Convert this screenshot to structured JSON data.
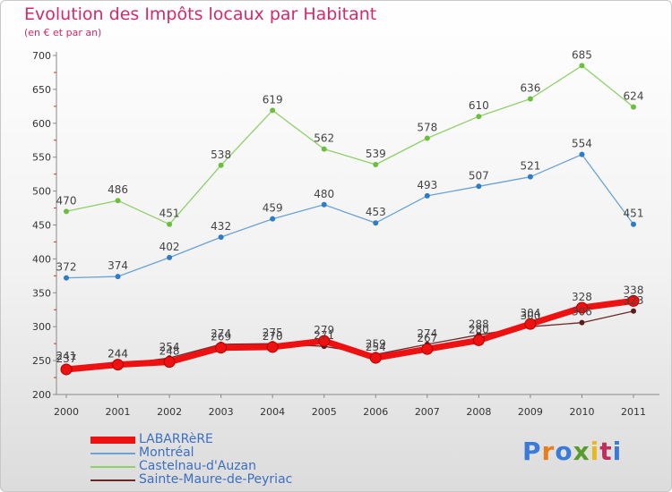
{
  "title": "Evolution des Impôts locaux par Habitant",
  "subtitle": "(en € et par an)",
  "logo": {
    "text": "Proxiti",
    "letter_colors": [
      "#3a7ad9",
      "#e87d1e",
      "#3a7ad9",
      "#5a9c2b",
      "#e8b81e",
      "#c22d5b",
      "#3a7ad9"
    ]
  },
  "chart_data": {
    "type": "line",
    "title": "Evolution des Impôts locaux par Habitant",
    "subtitle": "(en € et par an)",
    "xlabel": "",
    "ylabel": "",
    "x": [
      "2000",
      "2001",
      "2002",
      "2003",
      "2004",
      "2005",
      "2006",
      "2007",
      "2008",
      "2009",
      "2010",
      "2011"
    ],
    "ylim": [
      200,
      700
    ],
    "yticks": [
      200,
      250,
      300,
      350,
      400,
      450,
      500,
      550,
      600,
      650,
      700
    ],
    "grid": false,
    "legend_position": "bottom-left",
    "series": [
      {
        "name": "LABARRèRE",
        "color": "#ee1111",
        "marker": "#ee1111",
        "emphasis": true,
        "show_labels": true,
        "values": [
          237,
          244,
          248,
          269,
          270,
          279,
          254,
          267,
          280,
          304,
          328,
          338
        ]
      },
      {
        "name": "Montréal",
        "color": "#6aa3d4",
        "marker": "#2f7bc4",
        "emphasis": false,
        "show_labels": true,
        "values": [
          372,
          374,
          402,
          432,
          459,
          480,
          453,
          493,
          507,
          521,
          554,
          451
        ]
      },
      {
        "name": "Castelnau-d'Auzan",
        "color": "#8fd06a",
        "marker": "#6cbf3c",
        "emphasis": false,
        "show_labels": true,
        "values": [
          470,
          486,
          451,
          538,
          619,
          562,
          539,
          578,
          610,
          636,
          685,
          624
        ]
      },
      {
        "name": "Sainte-Maure-de-Peyriac",
        "color": "#6b2a2a",
        "marker": "#5a1c1c",
        "emphasis": false,
        "show_labels": true,
        "values": [
          241,
          244,
          254,
          274,
          275,
          271,
          259,
          274,
          288,
          300,
          306,
          323
        ]
      }
    ]
  }
}
